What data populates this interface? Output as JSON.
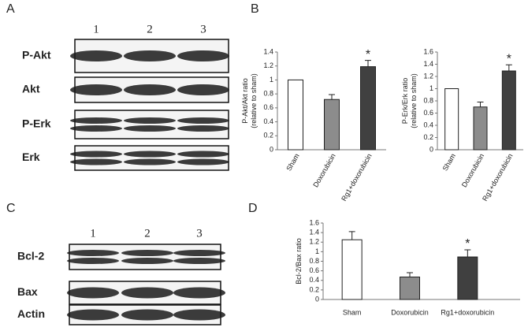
{
  "panels": [
    "A",
    "B",
    "C",
    "D"
  ],
  "blots": [
    {
      "lanes": [
        "1",
        "2",
        "3"
      ],
      "rows": [
        "P-Akt",
        "Akt",
        "P-Erk",
        "Erk"
      ]
    },
    {
      "lanes": [
        "1",
        "2",
        "3"
      ],
      "rows": [
        "Bcl-2",
        "Bax",
        "Actin"
      ]
    }
  ],
  "chart_data": [
    {
      "type": "bar",
      "ylabel": [
        "P-Akt/Akt ratio",
        "(relative to sham)"
      ],
      "categories": [
        "Sham",
        "Doxorubicin",
        "Rg1+doxorubicin"
      ],
      "values": [
        1.0,
        0.72,
        1.19
      ],
      "errors": [
        0,
        0.07,
        0.09
      ],
      "colors": [
        "#ffffff",
        "#8c8c8c",
        "#404040"
      ],
      "ylim": [
        0,
        1.4
      ],
      "yticks": [
        0,
        0.2,
        0.4,
        0.6,
        0.8,
        1,
        1.2,
        1.4
      ],
      "annotations": [
        {
          "text": "*",
          "category": "Rg1+doxorubicin"
        }
      ]
    },
    {
      "type": "bar",
      "ylabel": [
        "P-Erk/Erk ratio",
        "(relative to sham)"
      ],
      "categories": [
        "Sham",
        "Doxorubicin",
        "Rg1+doxorubicin"
      ],
      "values": [
        1.0,
        0.7,
        1.29
      ],
      "errors": [
        0,
        0.08,
        0.1
      ],
      "colors": [
        "#ffffff",
        "#8c8c8c",
        "#404040"
      ],
      "ylim": [
        0,
        1.6
      ],
      "yticks": [
        0,
        0.2,
        0.4,
        0.6,
        0.8,
        1,
        1.2,
        1.4,
        1.6
      ],
      "annotations": [
        {
          "text": "*",
          "category": "Rg1+doxorubicin"
        }
      ]
    },
    {
      "type": "bar",
      "ylabel": [
        "Bcl-2/Bax ratio"
      ],
      "categories": [
        "Sham",
        "Doxorubicin",
        "Rg1+doxorubicin"
      ],
      "values": [
        1.25,
        0.47,
        0.89
      ],
      "errors": [
        0.17,
        0.09,
        0.15
      ],
      "colors": [
        "#ffffff",
        "#8c8c8c",
        "#404040"
      ],
      "ylim": [
        0,
        1.6
      ],
      "yticks": [
        0,
        0.2,
        0.4,
        0.6,
        0.8,
        1,
        1.2,
        1.4,
        1.6
      ],
      "annotations": [
        {
          "text": "*",
          "category": "Rg1+doxorubicin"
        }
      ]
    }
  ]
}
